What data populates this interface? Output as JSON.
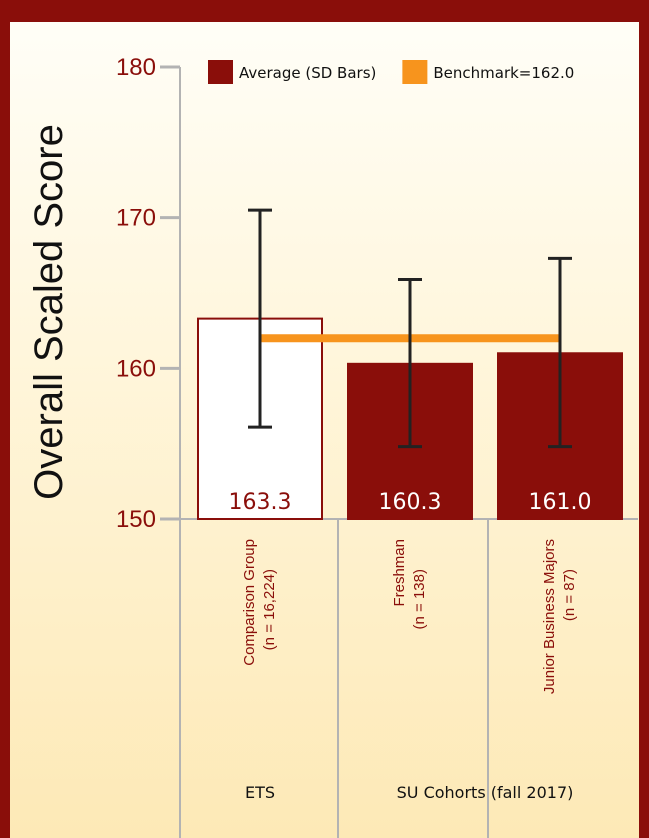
{
  "chart_data": {
    "type": "bar",
    "ylabel": "Overall Scaled Score",
    "ylim": [
      150,
      180
    ],
    "yticks": [
      150,
      160,
      170,
      180
    ],
    "categories": [
      {
        "line1": "Comparison Group",
        "line2": "(n = 16,224)"
      },
      {
        "line1": "Freshman",
        "line2": "(n = 138)"
      },
      {
        "line1": "Junior Business Majors",
        "line2": "(n = 87)"
      }
    ],
    "groups": [
      {
        "label": "ETS",
        "span": [
          0,
          0
        ]
      },
      {
        "label": "SU Cohorts (fall 2017)",
        "span": [
          1,
          2
        ]
      }
    ],
    "values": [
      163.3,
      160.3,
      161.0
    ],
    "value_labels": [
      "163.3",
      "160.3",
      "161.0"
    ],
    "error_low": [
      156.1,
      154.8,
      154.8
    ],
    "error_high": [
      170.5,
      165.9,
      167.3
    ],
    "benchmark": 162.0,
    "legend": [
      {
        "label": "Average (SD Bars)",
        "color": "#8a0e0a"
      },
      {
        "label": "Benchmark=162.0",
        "color": "#f7941d"
      }
    ],
    "bar_fills": [
      "#ffffff",
      "#8a0e0a",
      "#8a0e0a"
    ],
    "value_label_colors": [
      "#8a0e0a",
      "#ffffff",
      "#ffffff"
    ],
    "colors": {
      "bar": "#8a0e0a",
      "benchmark": "#f7941d",
      "axis": "#b3b3b3",
      "error": "#222222"
    }
  }
}
